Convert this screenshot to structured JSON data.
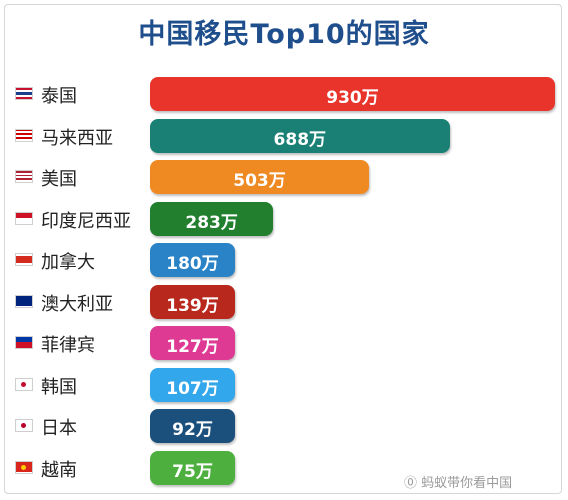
{
  "chart_data": {
    "type": "bar",
    "orientation": "horizontal",
    "title": "中国移民Top10的国家",
    "categories": [
      "泰国",
      "马来西亚",
      "美国",
      "印度尼西亚",
      "加拿大",
      "澳大利亚",
      "菲律宾",
      "韩国",
      "日本",
      "越南"
    ],
    "values": [
      930,
      688,
      503,
      283,
      180,
      139,
      127,
      107,
      92,
      75
    ],
    "value_labels": [
      "930万",
      "688万",
      "503万",
      "283万",
      "180万",
      "139万",
      "127万",
      "107万",
      "92万",
      "75万"
    ],
    "bar_colors": [
      "#e8342a",
      "#1a8076",
      "#ef8a22",
      "#217f2e",
      "#2a83c6",
      "#b8281d",
      "#de3a94",
      "#33a7ec",
      "#1b4f7c",
      "#4caf3e"
    ],
    "flag_icons": [
      "thailand-flag-icon",
      "malaysia-flag-icon",
      "usa-flag-icon",
      "indonesia-flag-icon",
      "canada-flag-icon",
      "australia-flag-icon",
      "philippines-flag-icon",
      "korea-flag-icon",
      "japan-flag-icon",
      "vietnam-flag-icon"
    ],
    "xlim": [
      0,
      930
    ],
    "grid": false,
    "legend": "none"
  },
  "watermark": "⓪ 蚂蚁带你看中国",
  "colors": {
    "title": "#1f4e8c"
  }
}
